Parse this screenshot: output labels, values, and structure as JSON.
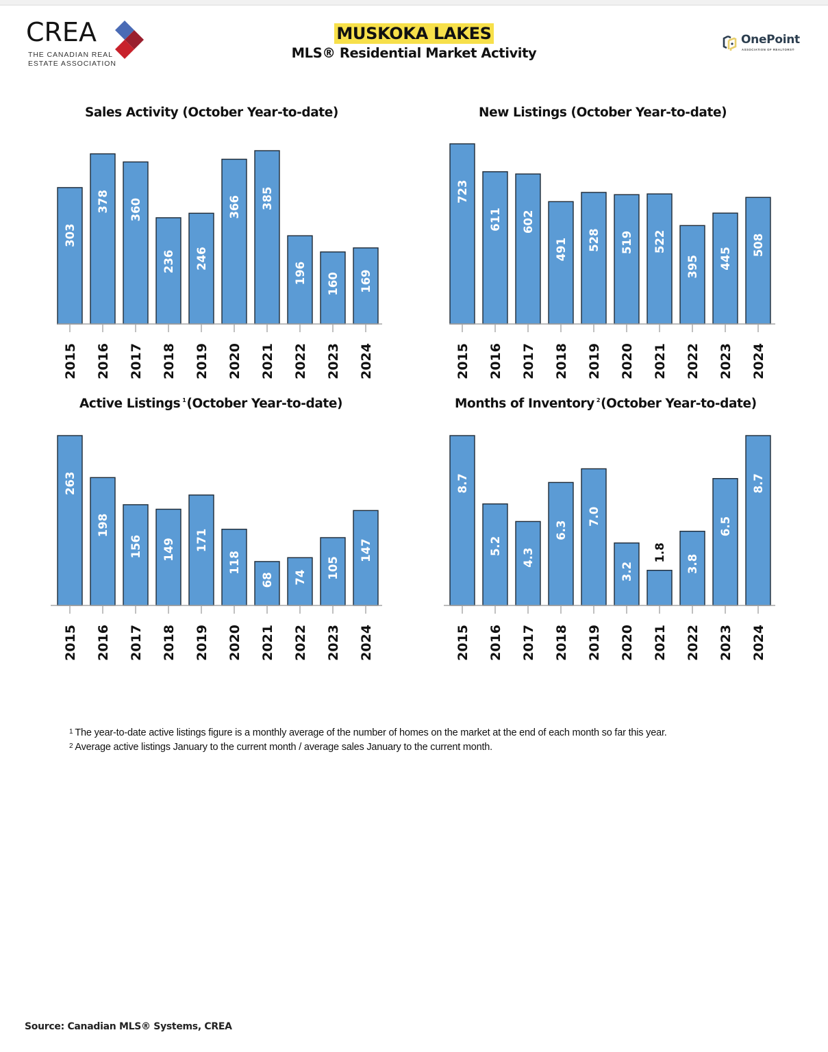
{
  "header": {
    "crea_logo_word": "CREA",
    "crea_logo_sub_line1": "THE CANADIAN REAL",
    "crea_logo_sub_line2": "ESTATE ASSOCIATION",
    "title": "MUSKOKA LAKES",
    "subtitle": "MLS® Residential Market Activity",
    "onepoint_logo_word": "OnePoint",
    "onepoint_logo_sub": "ASSOCIATION OF REALTORS®"
  },
  "colors": {
    "bar_fill": "#5b9bd5",
    "bar_stroke": "#1f2a36",
    "axis": "#a6a6a6",
    "title_highlight": "#f7e04a",
    "crea_blue": "#4a6bb5",
    "crea_red": "#c8212b",
    "crea_darkred": "#9a1f2e",
    "onepoint_yellow": "#e8cf6a",
    "onepoint_dark": "#2c3e4f"
  },
  "chart_data": [
    {
      "id": "sales",
      "type": "bar",
      "title": "Sales Activity (October Year-to-date)",
      "footnote_ref": "",
      "categories": [
        "2015",
        "2016",
        "2017",
        "2018",
        "2019",
        "2020",
        "2021",
        "2022",
        "2023",
        "2024"
      ],
      "values": [
        303,
        378,
        360,
        236,
        246,
        366,
        385,
        196,
        160,
        169
      ],
      "labels": [
        "303",
        "378",
        "360",
        "236",
        "246",
        "366",
        "385",
        "196",
        "160",
        "169"
      ],
      "xlabel": "",
      "ylabel": "",
      "ylim": [
        0,
        385
      ],
      "grid": false
    },
    {
      "id": "new-listings",
      "type": "bar",
      "title": "New Listings (October Year-to-date)",
      "footnote_ref": "",
      "categories": [
        "2015",
        "2016",
        "2017",
        "2018",
        "2019",
        "2020",
        "2021",
        "2022",
        "2023",
        "2024"
      ],
      "values": [
        723,
        611,
        602,
        491,
        528,
        519,
        522,
        395,
        445,
        508
      ],
      "labels": [
        "723",
        "611",
        "602",
        "491",
        "528",
        "519",
        "522",
        "395",
        "445",
        "508"
      ],
      "xlabel": "",
      "ylabel": "",
      "ylim": [
        0,
        723
      ],
      "grid": false
    },
    {
      "id": "active-listings",
      "type": "bar",
      "title_main": "Active Listings",
      "title_rest": "(October Year-to-date)",
      "footnote_ref": "1",
      "categories": [
        "2015",
        "2016",
        "2017",
        "2018",
        "2019",
        "2020",
        "2021",
        "2022",
        "2023",
        "2024"
      ],
      "values": [
        263,
        198,
        156,
        149,
        171,
        118,
        68,
        74,
        105,
        147
      ],
      "labels": [
        "263",
        "198",
        "156",
        "149",
        "171",
        "118",
        "68",
        "74",
        "105",
        "147"
      ],
      "xlabel": "",
      "ylabel": "",
      "ylim": [
        0,
        263
      ],
      "grid": false
    },
    {
      "id": "months-of-inventory",
      "type": "bar",
      "title_main": "Months of Inventory",
      "title_rest": "(October Year-to-date)",
      "footnote_ref": "2",
      "categories": [
        "2015",
        "2016",
        "2017",
        "2018",
        "2019",
        "2020",
        "2021",
        "2022",
        "2023",
        "2024"
      ],
      "values": [
        8.7,
        5.2,
        4.3,
        6.3,
        7.0,
        3.2,
        1.8,
        3.8,
        6.5,
        8.7
      ],
      "labels": [
        "8.7",
        "5.2",
        "4.3",
        "6.3",
        "7.0",
        "3.2",
        "1.8",
        "3.8",
        "6.5",
        "8.7"
      ],
      "xlabel": "",
      "ylabel": "",
      "ylim": [
        0,
        8.7
      ],
      "grid": false
    }
  ],
  "footnotes": [
    {
      "marker": "1",
      "text": "The year-to-date active listings figure is a monthly average of the number of homes on the market at the end of each month so far this year."
    },
    {
      "marker": "2",
      "text": "Average active listings January to the current month / average sales January to the current month."
    }
  ],
  "source": "Source: Canadian MLS® Systems, CREA"
}
